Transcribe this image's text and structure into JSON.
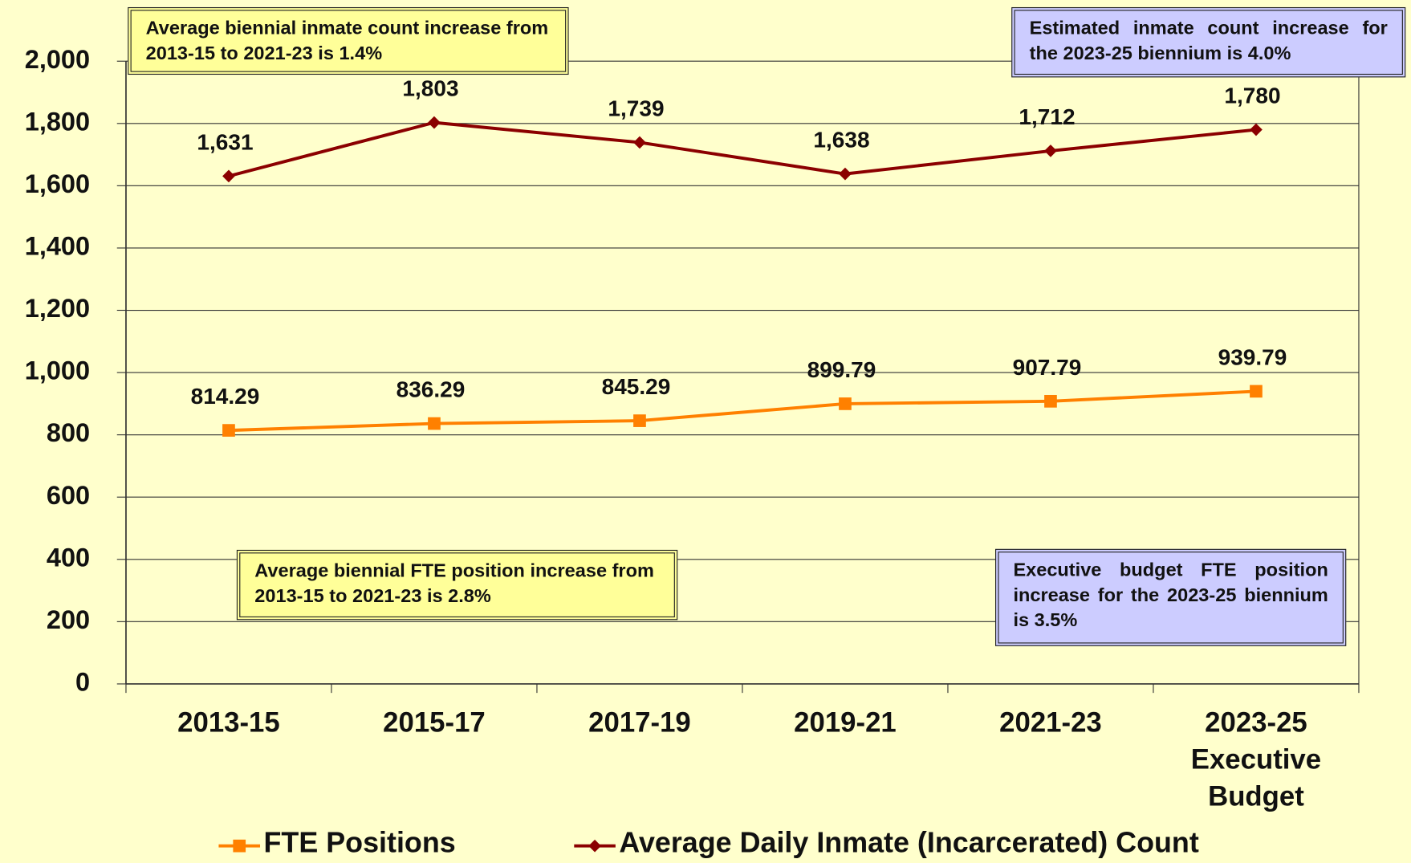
{
  "chart_data": {
    "type": "line",
    "categories": [
      "2013-15",
      "2015-17",
      "2017-19",
      "2019-21",
      "2021-23",
      "2023-25 Executive Budget"
    ],
    "series": [
      {
        "name": "FTE Positions",
        "color": "#ff8000",
        "marker": "square",
        "values": [
          814.29,
          836.29,
          845.29,
          899.79,
          907.79,
          939.79
        ]
      },
      {
        "name": "Average Daily Inmate (Incarcerated) Count",
        "color": "#8b0000",
        "marker": "diamond",
        "values": [
          1631,
          1803,
          1739,
          1638,
          1712,
          1780
        ],
        "value_labels": [
          "1,631",
          "1,803",
          "1,739",
          "1,638",
          "1,712",
          "1,780"
        ]
      }
    ],
    "ylim": [
      0,
      2000
    ],
    "yticks": [
      0,
      200,
      400,
      600,
      800,
      {
        "value": 1000,
        "label": "1,000"
      },
      {
        "value": 1200,
        "label": "1,200"
      },
      {
        "value": 1400,
        "label": "1,400"
      },
      {
        "value": 1600,
        "label": "1,600"
      },
      {
        "value": 1800,
        "label": "1,800"
      },
      {
        "value": 2000,
        "label": "2,000"
      }
    ],
    "grid": true,
    "legend": "bottom",
    "annotations": [
      "Average biennial inmate count increase from 2013-15 to 2021-23 is 1.4%",
      "Estimated inmate count increase for the 2023-25 biennium is 4.0%",
      "Average biennial FTE position increase from 2013-15 to 2021-23 is 2.8%",
      "Executive budget FTE position increase for the 2023-25 biennium is 3.5%"
    ]
  }
}
